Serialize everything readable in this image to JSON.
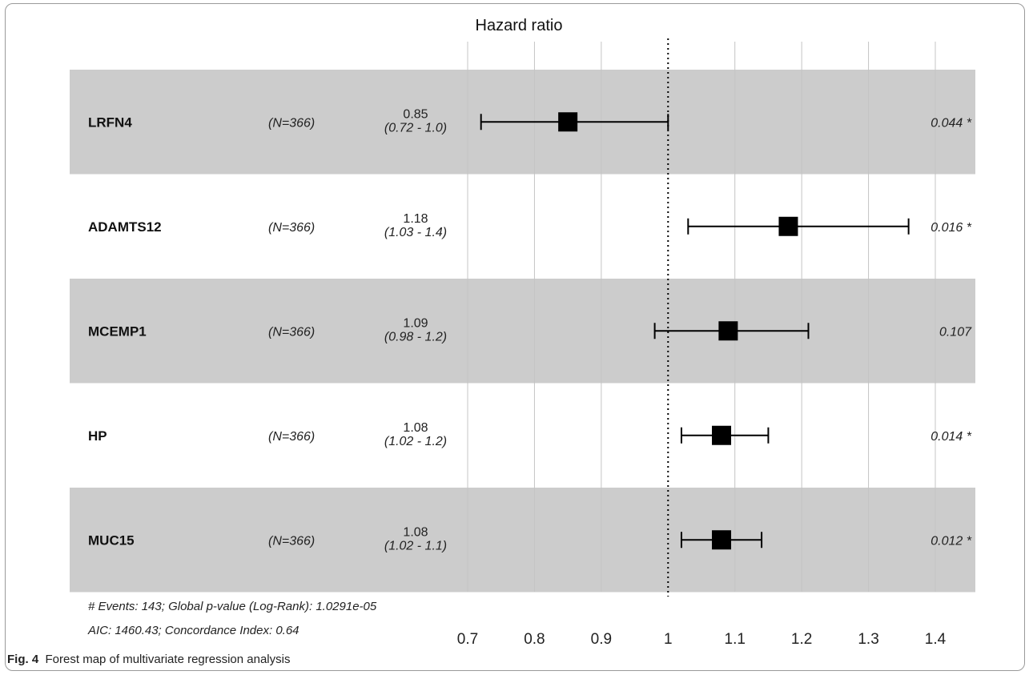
{
  "chart_data": {
    "type": "forest",
    "title": "Hazard ratio",
    "x_ticks": [
      0.7,
      0.8,
      0.9,
      1,
      1.1,
      1.2,
      1.3,
      1.4
    ],
    "x_tick_labels": [
      "0.7",
      "0.8",
      "0.9",
      "1",
      "1.1",
      "1.2",
      "1.3",
      "1.4"
    ],
    "xlim": [
      0.7,
      1.4
    ],
    "reference_line": 1,
    "grid": true,
    "rows": [
      {
        "name": "LRFN4",
        "n": "(N=366)",
        "hr": 0.85,
        "hr_label": "0.85",
        "ci": [
          0.72,
          1.0
        ],
        "ci_label": "(0.72 - 1.0)",
        "p": "0.044 *",
        "shaded": true
      },
      {
        "name": "ADAMTS12",
        "n": "(N=366)",
        "hr": 1.18,
        "hr_label": "1.18",
        "ci": [
          1.03,
          1.36
        ],
        "ci_label": "(1.03 - 1.4)",
        "p": "0.016 *",
        "shaded": false
      },
      {
        "name": "MCEMP1",
        "n": "(N=366)",
        "hr": 1.09,
        "hr_label": "1.09",
        "ci": [
          0.98,
          1.21
        ],
        "ci_label": "(0.98 - 1.2)",
        "p": "0.107",
        "shaded": true
      },
      {
        "name": "HP",
        "n": "(N=366)",
        "hr": 1.08,
        "hr_label": "1.08",
        "ci": [
          1.02,
          1.15
        ],
        "ci_label": "(1.02 - 1.2)",
        "p": "0.014 *",
        "shaded": false
      },
      {
        "name": "MUC15",
        "n": "(N=366)",
        "hr": 1.08,
        "hr_label": "1.08",
        "ci": [
          1.02,
          1.14
        ],
        "ci_label": "(1.02 - 1.1)",
        "p": "0.012 *",
        "shaded": true
      }
    ],
    "footnote_line1": "# Events: 143; Global p-value (Log-Rank): 1.0291e-05",
    "footnote_line2": "AIC: 1460.43; Concordance Index: 0.64",
    "colors": {
      "shaded_row": "#cccccc",
      "grid": "#c4c4c4",
      "marker": "#000000"
    }
  },
  "caption": {
    "label": "Fig. 4",
    "text": "Forest map of multivariate regression analysis"
  }
}
